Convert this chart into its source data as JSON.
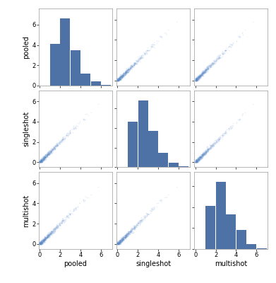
{
  "variables": [
    "pooled",
    "singleshot",
    "multishot"
  ],
  "bar_color": "#4f72a6",
  "scatter_color": "#5b8bc9",
  "scatter_alpha": 0.12,
  "contour_color": "#7aabd4",
  "xlim": [
    0,
    7
  ],
  "ylim": [
    0,
    7
  ],
  "tick_values": [
    0,
    2,
    4,
    6
  ],
  "figsize": [
    3.91,
    4.0
  ],
  "dpi": 100,
  "n_points": 800,
  "seed": 42,
  "hist_bins_edges": [
    0,
    1,
    2,
    3,
    4,
    5,
    6,
    7
  ],
  "hist_heights": {
    "pooled": [
      0,
      4.1,
      6.6,
      3.5,
      1.2,
      0.4,
      0.1
    ],
    "singleshot": [
      0,
      4.6,
      6.8,
      3.7,
      1.5,
      0.5,
      0.1
    ],
    "multishot": [
      0,
      4.1,
      6.4,
      3.3,
      1.8,
      0.5,
      0.1
    ]
  }
}
